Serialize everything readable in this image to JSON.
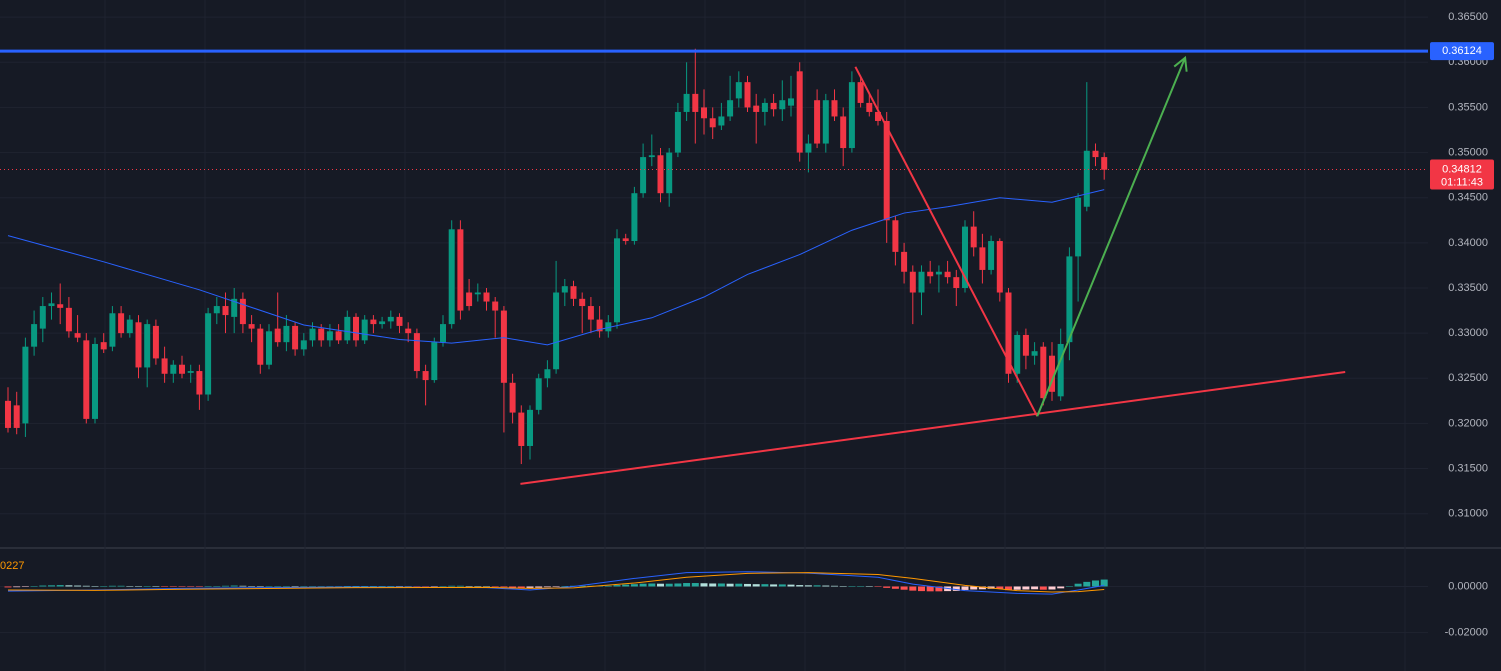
{
  "chart_data": {
    "type": "candlestick",
    "ylim": [
      0.3062,
      0.3669
    ],
    "yticks": [
      {
        "value": 0.365,
        "label": "0.36500"
      },
      {
        "value": 0.36,
        "label": "0.36000"
      },
      {
        "value": 0.355,
        "label": "0.35500"
      },
      {
        "value": 0.35,
        "label": "0.35000"
      },
      {
        "value": 0.345,
        "label": "0.34500"
      },
      {
        "value": 0.34,
        "label": "0.34000"
      },
      {
        "value": 0.335,
        "label": "0.33500"
      },
      {
        "value": 0.33,
        "label": "0.33000"
      },
      {
        "value": 0.325,
        "label": "0.32500"
      },
      {
        "value": 0.32,
        "label": "0.32000"
      },
      {
        "value": 0.315,
        "label": "0.31500"
      },
      {
        "value": 0.31,
        "label": "0.31000"
      }
    ],
    "grid": true,
    "up_color": "#089981",
    "down_color": "#f23645",
    "ohlc": [
      [
        0.3225,
        0.324,
        0.319,
        0.3195
      ],
      [
        0.322,
        0.3235,
        0.3188,
        0.3195
      ],
      [
        0.32,
        0.3295,
        0.3185,
        0.3285
      ],
      [
        0.3285,
        0.3325,
        0.3275,
        0.331
      ],
      [
        0.3305,
        0.334,
        0.329,
        0.333
      ],
      [
        0.333,
        0.3345,
        0.3315,
        0.3333
      ],
      [
        0.3332,
        0.3355,
        0.331,
        0.3328
      ],
      [
        0.3328,
        0.334,
        0.3295,
        0.3302
      ],
      [
        0.33,
        0.332,
        0.329,
        0.3295
      ],
      [
        0.3292,
        0.33,
        0.32,
        0.3205
      ],
      [
        0.3205,
        0.3295,
        0.32,
        0.3288
      ],
      [
        0.329,
        0.33,
        0.3278,
        0.3282
      ],
      [
        0.3285,
        0.333,
        0.328,
        0.3322
      ],
      [
        0.3322,
        0.333,
        0.3295,
        0.33
      ],
      [
        0.33,
        0.332,
        0.3295,
        0.3315
      ],
      [
        0.3312,
        0.332,
        0.325,
        0.3262
      ],
      [
        0.3262,
        0.3315,
        0.324,
        0.331
      ],
      [
        0.3308,
        0.3315,
        0.3265,
        0.3272
      ],
      [
        0.3272,
        0.3285,
        0.3245,
        0.3255
      ],
      [
        0.3255,
        0.327,
        0.3245,
        0.3265
      ],
      [
        0.3265,
        0.3275,
        0.325,
        0.3255
      ],
      [
        0.3256,
        0.3265,
        0.3245,
        0.3258
      ],
      [
        0.3258,
        0.3265,
        0.3215,
        0.3232
      ],
      [
        0.3232,
        0.3328,
        0.3225,
        0.3322
      ],
      [
        0.3322,
        0.334,
        0.331,
        0.333
      ],
      [
        0.333,
        0.3345,
        0.33,
        0.332
      ],
      [
        0.3318,
        0.335,
        0.33,
        0.3338
      ],
      [
        0.3338,
        0.3345,
        0.33,
        0.331
      ],
      [
        0.331,
        0.332,
        0.329,
        0.3305
      ],
      [
        0.3305,
        0.331,
        0.3255,
        0.3265
      ],
      [
        0.3265,
        0.331,
        0.326,
        0.3302
      ],
      [
        0.3305,
        0.3345,
        0.3285,
        0.329
      ],
      [
        0.329,
        0.332,
        0.328,
        0.3308
      ],
      [
        0.3308,
        0.3312,
        0.3275,
        0.3282
      ],
      [
        0.3282,
        0.33,
        0.3275,
        0.3292
      ],
      [
        0.3292,
        0.3312,
        0.3285,
        0.3305
      ],
      [
        0.3305,
        0.331,
        0.3285,
        0.3292
      ],
      [
        0.3292,
        0.331,
        0.3285,
        0.3302
      ],
      [
        0.3302,
        0.331,
        0.3288,
        0.3292
      ],
      [
        0.3292,
        0.3325,
        0.3288,
        0.3318
      ],
      [
        0.3318,
        0.3322,
        0.3285,
        0.3292
      ],
      [
        0.3292,
        0.332,
        0.3288,
        0.3315
      ],
      [
        0.3315,
        0.332,
        0.33,
        0.331
      ],
      [
        0.331,
        0.3318,
        0.3305,
        0.3313
      ],
      [
        0.3313,
        0.3325,
        0.3305,
        0.3318
      ],
      [
        0.3318,
        0.3322,
        0.33,
        0.3308
      ],
      [
        0.3305,
        0.3312,
        0.329,
        0.33
      ],
      [
        0.33,
        0.3305,
        0.325,
        0.3258
      ],
      [
        0.3258,
        0.3265,
        0.322,
        0.3248
      ],
      [
        0.3248,
        0.3295,
        0.3245,
        0.329
      ],
      [
        0.329,
        0.332,
        0.3285,
        0.331
      ],
      [
        0.331,
        0.3425,
        0.3305,
        0.3415
      ],
      [
        0.3415,
        0.3425,
        0.3315,
        0.3325
      ],
      [
        0.3345,
        0.336,
        0.3325,
        0.333
      ],
      [
        0.3343,
        0.3355,
        0.3335,
        0.3345
      ],
      [
        0.3345,
        0.335,
        0.3325,
        0.3335
      ],
      [
        0.3335,
        0.334,
        0.3295,
        0.3325
      ],
      [
        0.3325,
        0.333,
        0.319,
        0.3245
      ],
      [
        0.3245,
        0.3255,
        0.32,
        0.3212
      ],
      [
        0.3212,
        0.322,
        0.3155,
        0.3175
      ],
      [
        0.3175,
        0.322,
        0.316,
        0.3215
      ],
      [
        0.3215,
        0.3255,
        0.321,
        0.325
      ],
      [
        0.325,
        0.327,
        0.324,
        0.326
      ],
      [
        0.326,
        0.338,
        0.3255,
        0.3345
      ],
      [
        0.3345,
        0.336,
        0.333,
        0.3352
      ],
      [
        0.3352,
        0.3358,
        0.333,
        0.3338
      ],
      [
        0.3338,
        0.3345,
        0.33,
        0.333
      ],
      [
        0.333,
        0.334,
        0.33,
        0.3315
      ],
      [
        0.3315,
        0.333,
        0.3295,
        0.3302
      ],
      [
        0.3302,
        0.332,
        0.3295,
        0.3312
      ],
      [
        0.3312,
        0.3415,
        0.3305,
        0.3405
      ],
      [
        0.3405,
        0.341,
        0.3398,
        0.3402
      ],
      [
        0.3402,
        0.3462,
        0.3398,
        0.3455
      ],
      [
        0.3455,
        0.351,
        0.345,
        0.3495
      ],
      [
        0.3495,
        0.352,
        0.3485,
        0.3497
      ],
      [
        0.3497,
        0.3505,
        0.3445,
        0.3455
      ],
      [
        0.3455,
        0.3505,
        0.344,
        0.35
      ],
      [
        0.35,
        0.3555,
        0.3495,
        0.3545
      ],
      [
        0.3545,
        0.36,
        0.3535,
        0.3565
      ],
      [
        0.3565,
        0.3615,
        0.351,
        0.3545
      ],
      [
        0.355,
        0.357,
        0.352,
        0.3538
      ],
      [
        0.3538,
        0.355,
        0.3515,
        0.3528
      ],
      [
        0.353,
        0.3555,
        0.3525,
        0.354
      ],
      [
        0.354,
        0.3585,
        0.3535,
        0.3558
      ],
      [
        0.356,
        0.359,
        0.355,
        0.3578
      ],
      [
        0.3578,
        0.3585,
        0.3545,
        0.355
      ],
      [
        0.3552,
        0.3565,
        0.351,
        0.3545
      ],
      [
        0.3545,
        0.356,
        0.353,
        0.3555
      ],
      [
        0.3555,
        0.3565,
        0.354,
        0.3548
      ],
      [
        0.3548,
        0.358,
        0.3535,
        0.3558
      ],
      [
        0.3552,
        0.3585,
        0.354,
        0.356
      ],
      [
        0.359,
        0.36,
        0.349,
        0.35
      ],
      [
        0.35,
        0.352,
        0.3478,
        0.351
      ],
      [
        0.3558,
        0.357,
        0.3505,
        0.351
      ],
      [
        0.351,
        0.3565,
        0.35,
        0.3558
      ],
      [
        0.3558,
        0.357,
        0.3535,
        0.354
      ],
      [
        0.354,
        0.355,
        0.3485,
        0.3505
      ],
      [
        0.3505,
        0.359,
        0.35,
        0.3578
      ],
      [
        0.3578,
        0.3585,
        0.355,
        0.3555
      ],
      [
        0.3555,
        0.3565,
        0.354,
        0.3545
      ],
      [
        0.3545,
        0.357,
        0.353,
        0.3535
      ],
      [
        0.3535,
        0.3545,
        0.34,
        0.3425
      ],
      [
        0.3425,
        0.343,
        0.3375,
        0.339
      ],
      [
        0.339,
        0.34,
        0.3355,
        0.3368
      ],
      [
        0.3368,
        0.3375,
        0.331,
        0.3345
      ],
      [
        0.3345,
        0.3375,
        0.332,
        0.3368
      ],
      [
        0.3368,
        0.338,
        0.3355,
        0.3363
      ],
      [
        0.3365,
        0.3375,
        0.3345,
        0.3368
      ],
      [
        0.3368,
        0.338,
        0.3355,
        0.3362
      ],
      [
        0.3362,
        0.337,
        0.333,
        0.335
      ],
      [
        0.335,
        0.3425,
        0.3345,
        0.3418
      ],
      [
        0.3418,
        0.3435,
        0.3385,
        0.3395
      ],
      [
        0.3395,
        0.341,
        0.3355,
        0.337
      ],
      [
        0.337,
        0.3408,
        0.3365,
        0.3402
      ],
      [
        0.3402,
        0.3405,
        0.3335,
        0.3345
      ],
      [
        0.3345,
        0.335,
        0.3245,
        0.3255
      ],
      [
        0.3255,
        0.3302,
        0.3245,
        0.3298
      ],
      [
        0.3298,
        0.3305,
        0.326,
        0.3275
      ],
      [
        0.3275,
        0.329,
        0.3265,
        0.328
      ],
      [
        0.3285,
        0.329,
        0.322,
        0.3228
      ],
      [
        0.3275,
        0.329,
        0.3225,
        0.3235
      ],
      [
        0.323,
        0.3305,
        0.3225,
        0.3288
      ],
      [
        0.329,
        0.3395,
        0.327,
        0.3385
      ],
      [
        0.3385,
        0.3455,
        0.3335,
        0.345
      ],
      [
        0.344,
        0.3578,
        0.3435,
        0.3502
      ],
      [
        0.3502,
        0.351,
        0.3485,
        0.3495
      ],
      [
        0.3495,
        0.35,
        0.347,
        0.3481
      ]
    ],
    "ma": {
      "color": "#2962ff",
      "x": [
        0,
        11,
        22,
        34,
        45,
        51,
        57,
        62,
        68,
        74,
        80,
        85,
        91,
        97,
        103,
        108,
        114,
        120,
        126
      ],
      "values": [
        0.3408,
        0.3379,
        0.3348,
        0.3309,
        0.3293,
        0.3289,
        0.3295,
        0.3287,
        0.3304,
        0.3317,
        0.334,
        0.3365,
        0.3387,
        0.3414,
        0.3433,
        0.344,
        0.345,
        0.3445,
        0.3459
      ]
    },
    "hline": {
      "value": 0.36124,
      "label": "0.36124",
      "color": "#2962ff"
    },
    "current_price": {
      "value": 0.34812,
      "label": "0.34812",
      "countdown": "01:11:43",
      "color": "#f23645"
    },
    "drawings": [
      {
        "color": "#f23645",
        "points": [
          [
            58.9,
            0.3133
          ],
          [
            153.7,
            0.3257
          ]
        ]
      },
      {
        "color": "#f23645",
        "points": [
          [
            97.4,
            0.3595
          ],
          [
            118.3,
            0.3208
          ]
        ]
      },
      {
        "color": "#4caf50",
        "arrow": true,
        "points": [
          [
            118.3,
            0.3208
          ],
          [
            121.7,
            0.3287
          ],
          [
            135.3,
            0.3605
          ]
        ]
      }
    ],
    "macd": {
      "label": "0227",
      "label_color": "#ff9800",
      "ylim": [
        -0.0366,
        0.0158
      ],
      "yticks": [
        {
          "value": 0,
          "label": "0.00000"
        },
        {
          "value": -0.02,
          "label": "-0.02000"
        }
      ],
      "hist_colors": {
        "up_rising": "#26a69a",
        "up_falling": "#b2dfdb",
        "down_falling": "#ff5252",
        "down_rising": "#ffcdd2"
      },
      "histogram": [
        -0.0004,
        -0.0003,
        -0.0001,
        0.0002,
        0.0004,
        0.0005,
        0.0006,
        0.0005,
        0.0004,
        0.0003,
        0.0002,
        0.0002,
        0.0003,
        0.0003,
        0.0002,
        0.0001,
        0.0001,
        0,
        -0.0001,
        -0.0001,
        -0.0002,
        -0.0002,
        -0.0002,
        0,
        0.0002,
        0.0003,
        0.0004,
        0.0003,
        0.0002,
        0.0001,
        0.0001,
        0.0001,
        0.0002,
        0.0001,
        0.0001,
        0.0001,
        0.0001,
        0.0001,
        0.0001,
        0.0002,
        0.0002,
        0.0002,
        0.0002,
        0.0002,
        0.0002,
        0.0001,
        0,
        -0.0001,
        -0.0002,
        -0.0001,
        0.0001,
        0.0003,
        0.0003,
        0.0002,
        0.0001,
        0,
        -0.0001,
        -0.0003,
        -0.0005,
        -0.0007,
        -0.0006,
        -0.0005,
        -0.0003,
        -0.0001,
        0.0002,
        0.0003,
        0.0003,
        0.0003,
        0.0003,
        0.0003,
        0.0006,
        0.0008,
        0.001,
        0.0012,
        0.0013,
        0.0012,
        0.0012,
        0.0013,
        0.0015,
        0.0015,
        0.0014,
        0.0013,
        0.0013,
        0.0012,
        0.0012,
        0.0011,
        0.001,
        0.001,
        0.0009,
        0.0009,
        0.0008,
        0.0006,
        0.0005,
        0.0005,
        0.0004,
        0.0003,
        0.0002,
        0.0002,
        0.0002,
        0.0001,
        -0.0001,
        -0.0006,
        -0.001,
        -0.0014,
        -0.0018,
        -0.002,
        -0.0021,
        -0.0021,
        -0.002,
        -0.0019,
        -0.0015,
        -0.0013,
        -0.0012,
        -0.001,
        -0.0011,
        -0.0016,
        -0.0014,
        -0.0013,
        -0.0012,
        -0.0014,
        -0.0013,
        -0.0008,
        0,
        0.0012,
        0.002,
        0.0026,
        0.003
      ],
      "macd_line": {
        "color": "#2962ff",
        "x": [
          0,
          10,
          20,
          40,
          55,
          60,
          65,
          72,
          78,
          85,
          92,
          100,
          104,
          110,
          116,
          120,
          123,
          126
        ],
        "values": [
          -0.002,
          -0.0015,
          -0.0008,
          -0.0002,
          -0.0005,
          -0.0015,
          0,
          0.0035,
          0.006,
          0.0064,
          0.0058,
          0.004,
          0.001,
          -0.0018,
          -0.003,
          -0.0033,
          -0.0015,
          0.0005
        ]
      },
      "signal_line": {
        "color": "#ff9800",
        "x": [
          0,
          10,
          20,
          40,
          55,
          60,
          65,
          72,
          78,
          85,
          92,
          100,
          104,
          110,
          116,
          120,
          123,
          126
        ],
        "values": [
          -0.0015,
          -0.0017,
          -0.0012,
          -0.0005,
          -0.0004,
          -0.0008,
          -0.0006,
          0.0015,
          0.004,
          0.0057,
          0.006,
          0.0052,
          0.0035,
          0.0005,
          -0.0018,
          -0.0024,
          -0.0022,
          -0.0013
        ]
      }
    }
  }
}
